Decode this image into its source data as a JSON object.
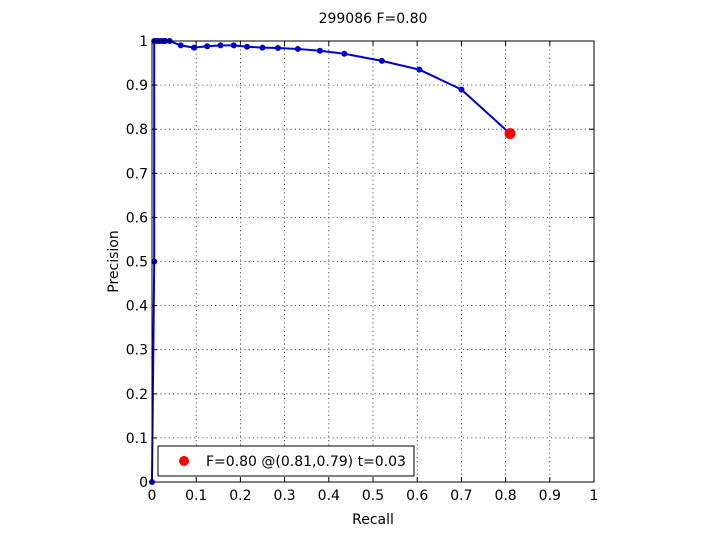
{
  "chart_data": {
    "type": "line",
    "title": "299086 F=0.80",
    "xlabel": "Recall",
    "ylabel": "Precision",
    "xlim": [
      0,
      1
    ],
    "ylim": [
      0,
      1
    ],
    "grid": true,
    "xticks": [
      "0",
      "0.1",
      "0.2",
      "0.3",
      "0.4",
      "0.5",
      "0.6",
      "0.7",
      "0.8",
      "0.9",
      "1"
    ],
    "yticks": [
      "0",
      "0.1",
      "0.2",
      "0.3",
      "0.4",
      "0.5",
      "0.6",
      "0.7",
      "0.8",
      "0.9",
      "1"
    ],
    "series": [
      {
        "color": "#0000cc",
        "points": [
          [
            0.0,
            0.0
          ],
          [
            0.005,
            0.5
          ],
          [
            0.005,
            1.0
          ],
          [
            0.01,
            1.0
          ],
          [
            0.015,
            1.0
          ],
          [
            0.02,
            1.0
          ],
          [
            0.025,
            1.0
          ],
          [
            0.03,
            1.0
          ],
          [
            0.04,
            1.0
          ],
          [
            0.065,
            0.99
          ],
          [
            0.095,
            0.985
          ],
          [
            0.125,
            0.988
          ],
          [
            0.155,
            0.99
          ],
          [
            0.185,
            0.99
          ],
          [
            0.215,
            0.987
          ],
          [
            0.25,
            0.985
          ],
          [
            0.285,
            0.984
          ],
          [
            0.33,
            0.982
          ],
          [
            0.38,
            0.978
          ],
          [
            0.435,
            0.971
          ],
          [
            0.52,
            0.955
          ],
          [
            0.605,
            0.935
          ],
          [
            0.7,
            0.89
          ],
          [
            0.81,
            0.79
          ]
        ]
      }
    ],
    "highlight_point": {
      "x": 0.81,
      "y": 0.79,
      "color": "#ff0000"
    },
    "legend": {
      "placement": "bottom-left",
      "label": "F=0.80 @(0.81,0.79) t=0.03",
      "color": "#ff0000"
    }
  }
}
